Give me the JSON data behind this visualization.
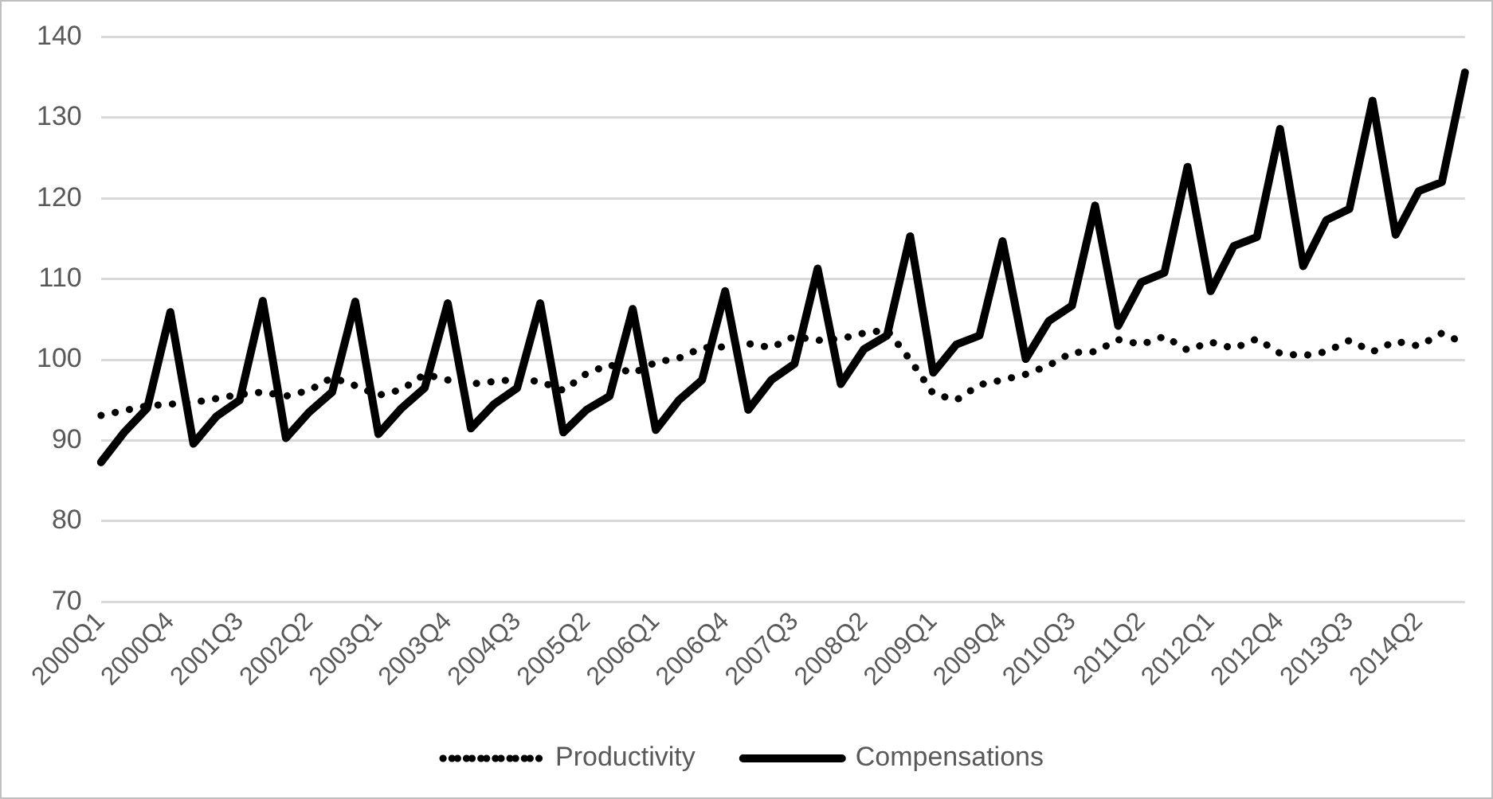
{
  "chart_data": {
    "type": "line",
    "categories": [
      "2000Q1",
      null,
      null,
      "2000Q4",
      null,
      null,
      "2001Q3",
      null,
      null,
      "2002Q2",
      null,
      null,
      "2003Q1",
      null,
      null,
      "2003Q4",
      null,
      null,
      "2004Q3",
      null,
      null,
      "2005Q2",
      null,
      null,
      "2006Q1",
      null,
      null,
      "2006Q4",
      null,
      null,
      "2007Q3",
      null,
      null,
      "2008Q2",
      null,
      null,
      "2009Q1",
      null,
      null,
      "2009Q4",
      null,
      null,
      "2010Q3",
      null,
      null,
      "2011Q2",
      null,
      null,
      "2012Q1",
      null,
      null,
      "2012Q4",
      null,
      null,
      "2013Q3",
      null,
      null,
      "2014Q2",
      null,
      null
    ],
    "series": [
      {
        "name": "Productivity",
        "color": "#000000",
        "line_style": "dotted",
        "values": [
          93.1,
          93.7,
          94.3,
          94.5,
          94.7,
          95.2,
          95.7,
          96.0,
          95.5,
          96.2,
          97.8,
          96.8,
          95.6,
          96.3,
          98.2,
          97.5,
          97.0,
          97.3,
          97.6,
          97.3,
          96.2,
          98.3,
          99.4,
          98.3,
          99.7,
          100.2,
          101.5,
          101.6,
          102.0,
          101.5,
          102.9,
          102.4,
          102.6,
          103.3,
          103.7,
          100.0,
          95.8,
          95.0,
          96.9,
          97.5,
          98.2,
          99.3,
          100.9,
          101.0,
          102.5,
          101.9,
          102.9,
          101.2,
          102.2,
          101.4,
          102.6,
          100.8,
          100.5,
          101.0,
          102.4,
          101.0,
          102.3,
          101.7,
          103.3,
          102.0
        ]
      },
      {
        "name": "Compensations",
        "color": "#000000",
        "line_style": "solid",
        "values": [
          87.3,
          91.0,
          94.0,
          105.9,
          89.6,
          93.0,
          95.0,
          107.3,
          90.3,
          93.5,
          96.0,
          107.2,
          90.8,
          94.0,
          96.5,
          107.0,
          91.5,
          94.5,
          96.5,
          107.0,
          91.0,
          93.8,
          95.5,
          106.3,
          91.3,
          95.0,
          97.5,
          108.5,
          93.8,
          97.5,
          99.5,
          111.3,
          97.0,
          101.3,
          103.0,
          115.3,
          98.4,
          101.9,
          103.0,
          114.7,
          100.1,
          104.8,
          106.7,
          119.1,
          104.2,
          109.6,
          110.8,
          123.9,
          108.5,
          114.1,
          115.2,
          128.6,
          111.6,
          117.3,
          118.7,
          132.1,
          115.5,
          120.9,
          122.0,
          135.6
        ]
      }
    ],
    "ylim": [
      70,
      140
    ],
    "yticks": [
      70,
      80,
      90,
      100,
      110,
      120,
      130,
      140
    ],
    "grid": "y",
    "legend": "bottom",
    "marker": "none"
  }
}
